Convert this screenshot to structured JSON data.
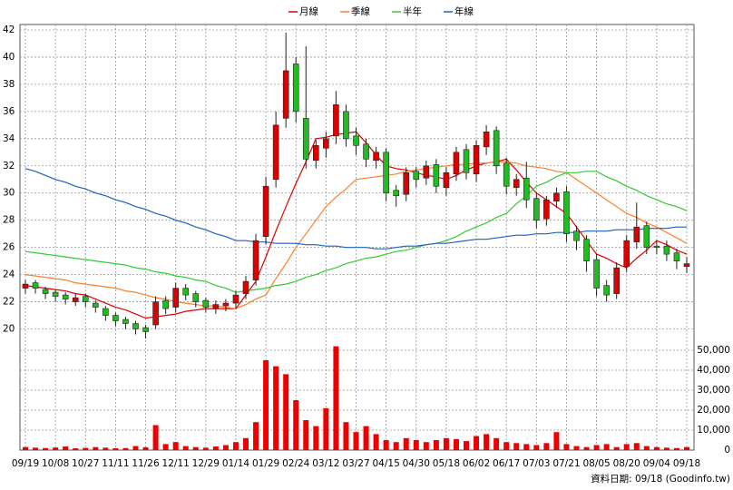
{
  "chart_data": {
    "type": "candlestick",
    "categories": [
      "09/19",
      null,
      null,
      "10/08",
      null,
      null,
      "10/27",
      null,
      null,
      "11/11",
      null,
      null,
      "11/26",
      null,
      null,
      "12/11",
      null,
      null,
      "12/29",
      null,
      null,
      "01/14",
      null,
      null,
      "01/29",
      null,
      null,
      "02/24",
      null,
      null,
      "03/12",
      null,
      null,
      "03/27",
      null,
      null,
      "04/15",
      null,
      null,
      "04/30",
      null,
      null,
      "05/18",
      null,
      null,
      "06/02",
      null,
      null,
      "06/17",
      null,
      null,
      "07/03",
      null,
      null,
      "07/21",
      null,
      null,
      "08/05",
      null,
      null,
      "08/20",
      null,
      null,
      "09/04",
      null,
      null,
      "09/18"
    ],
    "open": [
      23.0,
      23.4,
      22.9,
      22.7,
      22.5,
      22.0,
      22.4,
      21.9,
      21.5,
      21.0,
      20.7,
      20.4,
      20.1,
      20.3,
      22.1,
      21.6,
      23.0,
      22.6,
      22.1,
      21.5,
      21.7,
      21.9,
      22.6,
      23.6,
      26.8,
      31.0,
      35.5,
      39.5,
      35.5,
      32.4,
      33.3,
      34.2,
      36.0,
      34.2,
      33.6,
      32.4,
      33.0,
      30.2,
      29.9,
      31.6,
      31.1,
      32.1,
      30.4,
      31.4,
      33.2,
      31.4,
      33.4,
      34.6,
      32.2,
      30.4,
      31.1,
      29.6,
      28.1,
      29.4,
      30.1,
      27.2,
      26.6,
      25.1,
      23.2,
      22.6,
      24.6,
      26.4,
      27.6,
      26.1,
      26.1,
      25.6,
      24.6
    ],
    "high": [
      23.6,
      23.6,
      23.1,
      22.9,
      22.7,
      22.6,
      22.6,
      22.1,
      21.7,
      21.2,
      20.9,
      20.6,
      20.3,
      22.4,
      22.4,
      23.4,
      23.3,
      22.8,
      22.3,
      22.1,
      22.2,
      22.8,
      23.9,
      27.0,
      31.2,
      36.0,
      41.8,
      40.0,
      40.8,
      33.9,
      34.5,
      37.5,
      36.5,
      34.8,
      34.0,
      33.4,
      33.3,
      30.6,
      31.9,
      31.9,
      32.4,
      32.5,
      31.9,
      33.4,
      33.6,
      33.9,
      35.0,
      34.9,
      32.6,
      31.4,
      32.3,
      30.0,
      29.8,
      30.4,
      30.5,
      27.6,
      26.9,
      25.5,
      23.6,
      24.9,
      26.9,
      29.3,
      27.9,
      26.5,
      26.5,
      25.9,
      25.3
    ],
    "low": [
      22.6,
      22.6,
      22.2,
      22.0,
      21.8,
      21.7,
      21.6,
      21.2,
      20.6,
      20.2,
      20.0,
      19.6,
      19.3,
      20.0,
      21.1,
      21.2,
      22.1,
      21.6,
      21.2,
      21.1,
      21.3,
      21.5,
      22.2,
      23.2,
      26.2,
      30.4,
      34.8,
      35.2,
      31.8,
      31.8,
      32.6,
      33.6,
      33.4,
      32.8,
      31.9,
      31.8,
      29.4,
      29.0,
      29.4,
      30.4,
      30.6,
      30.0,
      29.8,
      30.9,
      31.0,
      30.8,
      32.8,
      31.4,
      29.9,
      29.8,
      28.9,
      27.4,
      27.6,
      28.9,
      26.4,
      25.8,
      24.2,
      22.4,
      22.0,
      22.2,
      24.2,
      25.9,
      25.5,
      25.5,
      25.0,
      24.4,
      24.1
    ],
    "close": [
      23.3,
      23.0,
      22.6,
      22.4,
      22.2,
      22.3,
      22.0,
      21.6,
      21.0,
      20.6,
      20.4,
      20.0,
      19.8,
      22.0,
      21.5,
      23.0,
      22.5,
      22.0,
      21.6,
      21.8,
      21.9,
      22.5,
      23.5,
      26.5,
      30.5,
      35.0,
      39.0,
      36.0,
      32.5,
      33.5,
      34.0,
      36.5,
      34.0,
      33.5,
      32.5,
      33.0,
      30.0,
      29.8,
      31.5,
      31.0,
      32.0,
      30.5,
      31.5,
      33.0,
      31.5,
      33.5,
      34.5,
      32.0,
      30.5,
      31.0,
      29.5,
      28.0,
      29.5,
      30.0,
      27.0,
      26.5,
      25.0,
      23.0,
      22.5,
      24.5,
      26.5,
      27.5,
      26.0,
      26.0,
      25.5,
      25.0,
      24.8
    ],
    "up_color": "#dd0000",
    "down_color": "#22bb22",
    "ylim": [
      18.5,
      42.4
    ],
    "yticks": [
      20,
      22,
      24,
      26,
      28,
      30,
      32,
      34,
      36,
      38,
      40,
      42
    ],
    "grid": true,
    "series": [
      {
        "name": "月線",
        "color": "#dd0000",
        "values": [
          23.2,
          23.1,
          23.0,
          22.9,
          22.8,
          22.6,
          22.5,
          22.2,
          21.9,
          21.6,
          21.4,
          21.1,
          20.8,
          20.9,
          21.0,
          21.1,
          21.3,
          21.4,
          21.5,
          21.5,
          21.5,
          21.5,
          22.5,
          23.5,
          25.3,
          27.2,
          29.0,
          30.7,
          32.3,
          34.0,
          34.1,
          34.3,
          34.4,
          34.5,
          33.7,
          32.8,
          32.0,
          31.8,
          31.7,
          31.5,
          31.3,
          31.2,
          31.0,
          31.3,
          31.7,
          32.0,
          32.2,
          32.3,
          32.5,
          31.7,
          30.8,
          30.0,
          29.5,
          29.0,
          28.5,
          27.5,
          26.5,
          25.5,
          25.2,
          24.8,
          24.5,
          25.2,
          25.8,
          26.5,
          26.2,
          25.8,
          25.5
        ]
      },
      {
        "name": "季線",
        "color": "#ff7f27",
        "values": [
          24.0,
          23.9,
          23.8,
          23.7,
          23.6,
          23.4,
          23.3,
          23.2,
          23.1,
          23.0,
          22.8,
          22.7,
          22.5,
          22.3,
          22.2,
          22.0,
          21.9,
          21.8,
          21.7,
          21.7,
          21.6,
          21.5,
          21.8,
          22.2,
          22.5,
          23.7,
          24.8,
          26.0,
          27.0,
          28.0,
          29.0,
          29.7,
          30.3,
          31.0,
          31.1,
          31.2,
          31.3,
          31.4,
          31.6,
          31.7,
          31.8,
          31.9,
          32.0,
          32.1,
          32.1,
          32.2,
          32.2,
          32.3,
          32.3,
          32.2,
          32.0,
          31.9,
          31.8,
          31.6,
          31.5,
          31.0,
          30.5,
          30.0,
          29.5,
          29.0,
          28.5,
          28.2,
          27.8,
          27.5,
          27.1,
          26.7,
          26.3
        ]
      },
      {
        "name": "半年",
        "color": "#33cc33",
        "values": [
          25.7,
          25.6,
          25.5,
          25.4,
          25.3,
          25.2,
          25.1,
          25.0,
          24.9,
          24.8,
          24.7,
          24.5,
          24.4,
          24.2,
          24.1,
          23.9,
          23.8,
          23.6,
          23.5,
          23.2,
          23.0,
          22.7,
          22.8,
          22.9,
          23.0,
          23.2,
          23.3,
          23.5,
          23.8,
          24.0,
          24.3,
          24.5,
          24.8,
          25.0,
          25.2,
          25.3,
          25.5,
          25.7,
          25.8,
          26.0,
          26.2,
          26.3,
          26.5,
          26.8,
          27.2,
          27.5,
          27.8,
          28.2,
          28.5,
          29.2,
          29.8,
          30.5,
          30.8,
          31.2,
          31.5,
          31.5,
          31.6,
          31.6,
          31.2,
          30.9,
          30.5,
          30.2,
          29.8,
          29.5,
          29.2,
          29.0,
          28.7
        ]
      },
      {
        "name": "年線",
        "color": "#1f5fbf",
        "values": [
          31.8,
          31.6,
          31.3,
          31.0,
          30.8,
          30.5,
          30.3,
          30.0,
          29.8,
          29.5,
          29.3,
          29.0,
          28.8,
          28.5,
          28.3,
          28.0,
          27.8,
          27.5,
          27.3,
          27.0,
          26.8,
          26.5,
          26.5,
          26.4,
          26.4,
          26.3,
          26.3,
          26.3,
          26.2,
          26.2,
          26.1,
          26.1,
          26.0,
          26.0,
          26.0,
          25.9,
          25.9,
          26.0,
          26.1,
          26.1,
          26.2,
          26.3,
          26.3,
          26.4,
          26.5,
          26.6,
          26.6,
          26.7,
          26.8,
          26.9,
          26.9,
          27.0,
          27.0,
          27.1,
          27.1,
          27.1,
          27.2,
          27.2,
          27.2,
          27.3,
          27.3,
          27.3,
          27.4,
          27.4,
          27.4,
          27.5,
          27.5
        ]
      }
    ],
    "volume": {
      "type": "bar",
      "color": "#ee0000",
      "values": [
        1500,
        1200,
        1000,
        1300,
        1800,
        900,
        1100,
        1500,
        1200,
        900,
        1000,
        2000,
        1400,
        12500,
        3000,
        4000,
        2000,
        1500,
        1200,
        1800,
        2500,
        4000,
        6000,
        14000,
        45000,
        42000,
        38000,
        25000,
        15000,
        12000,
        21000,
        52000,
        14000,
        9000,
        12000,
        8000,
        5000,
        4000,
        6000,
        5000,
        4000,
        5000,
        6000,
        5500,
        4500,
        7000,
        8000,
        6000,
        4000,
        3500,
        3000,
        2500,
        3500,
        9000,
        3000,
        2000,
        1500,
        2500,
        3000,
        1500,
        3000,
        3500,
        2000,
        1500,
        1200,
        1000,
        1500
      ],
      "ylim": [
        0,
        55000
      ],
      "yticks": [
        0,
        {
          "value": 10000,
          "label": "10,000"
        },
        {
          "value": 20000,
          "label": "20,000"
        },
        {
          "value": 30000,
          "label": "30,000"
        },
        {
          "value": 40000,
          "label": "40,000"
        },
        {
          "value": 50000,
          "label": "50,000"
        }
      ]
    },
    "source": "資料日期: 09/18 (Goodinfo.tw)"
  }
}
